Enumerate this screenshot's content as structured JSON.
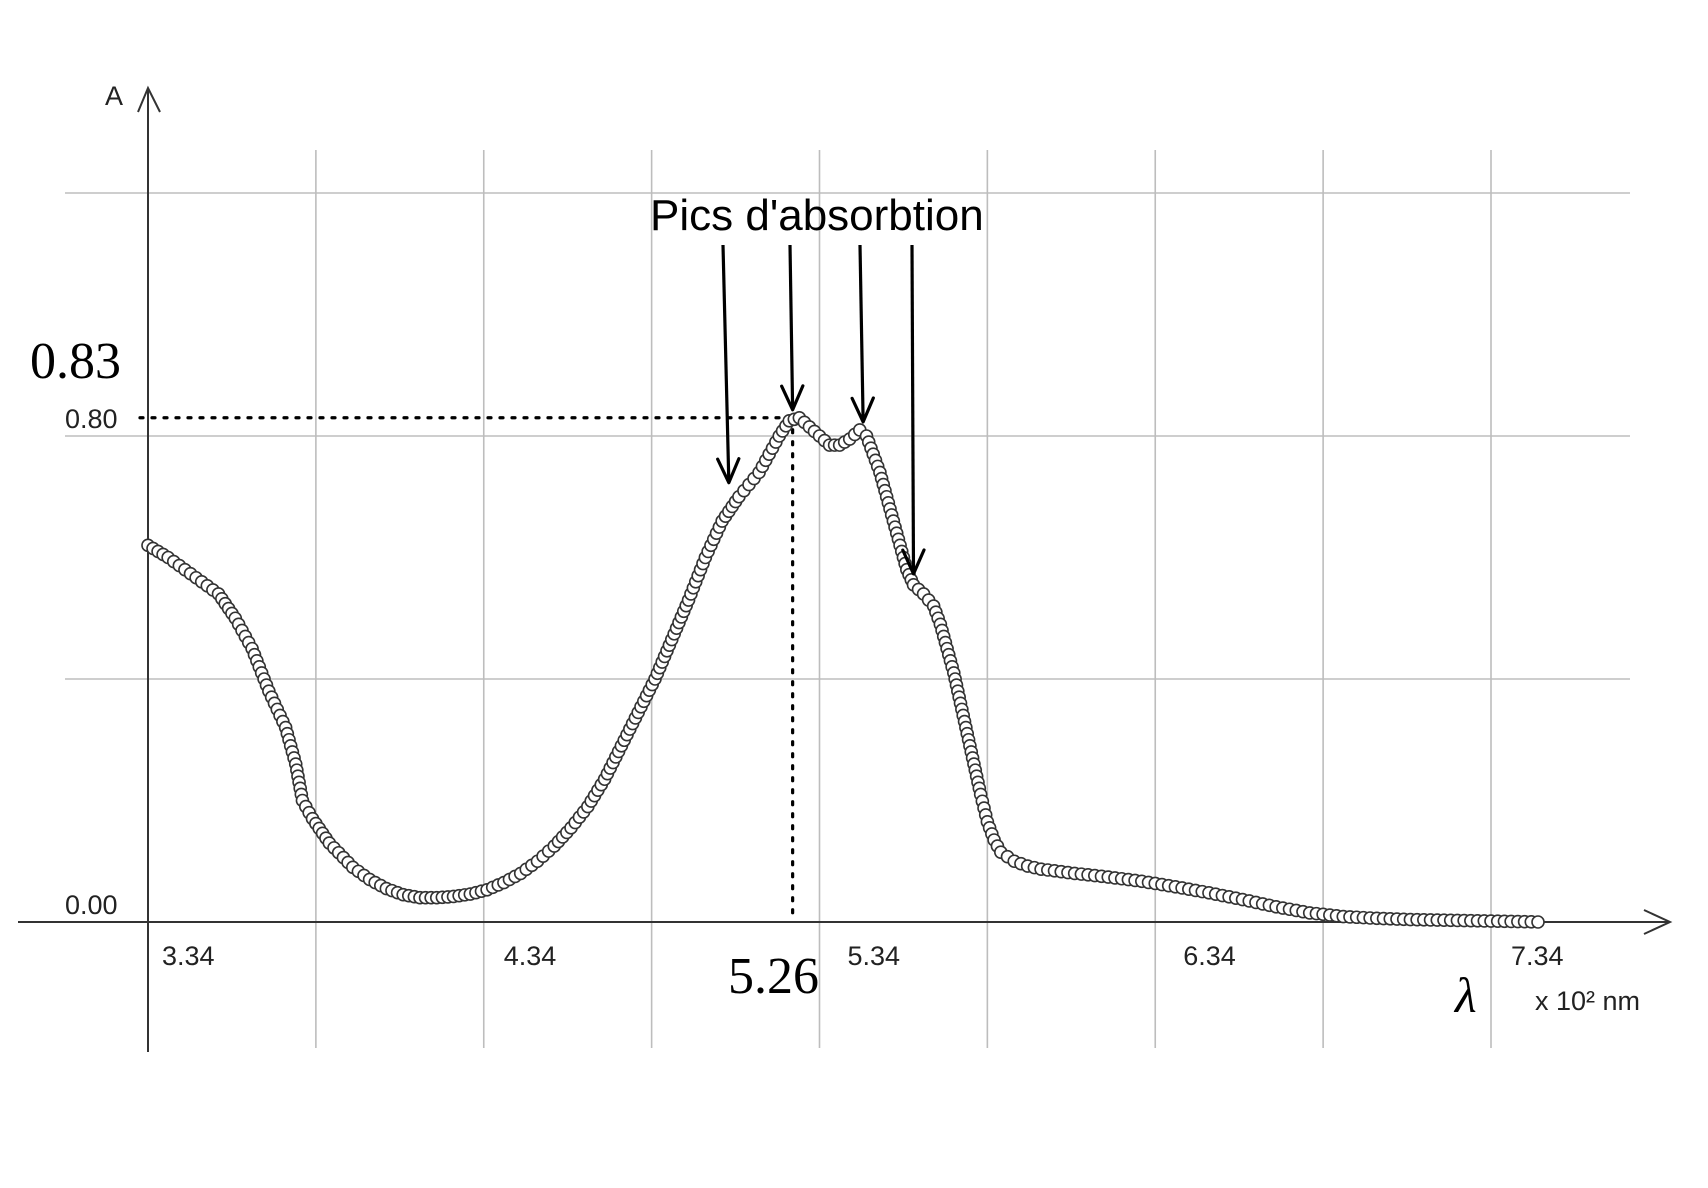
{
  "chart_data": {
    "type": "scatter",
    "title": "",
    "ylabel": "A",
    "xlabel": "λ",
    "xunit": "x 10² nm",
    "x_ticks": [
      "3.34",
      "4.34",
      "5.34",
      "6.34",
      "7.34"
    ],
    "y_ticks": [
      "0.00",
      "0.80"
    ],
    "xlim": [
      3.34,
      7.71
    ],
    "ylim": [
      0.0,
      0.96
    ],
    "grid": true,
    "marker": "open-circle",
    "reference": {
      "x_label": "5.26",
      "y_label": "0.83",
      "x": 5.26,
      "y": 0.83
    },
    "annotation": {
      "text": "Pics d'absorbtion",
      "targets": [
        {
          "x": 5.07,
          "y": 0.71
        },
        {
          "x": 5.26,
          "y": 0.83
        },
        {
          "x": 5.47,
          "y": 0.81
        },
        {
          "x": 5.62,
          "y": 0.56
        }
      ]
    },
    "series": [
      {
        "points": [
          [
            3.34,
            0.62
          ],
          [
            3.4,
            0.6
          ],
          [
            3.45,
            0.58
          ],
          [
            3.5,
            0.56
          ],
          [
            3.55,
            0.54
          ],
          [
            3.6,
            0.5
          ],
          [
            3.65,
            0.45
          ],
          [
            3.7,
            0.38
          ],
          [
            3.75,
            0.32
          ],
          [
            3.78,
            0.26
          ],
          [
            3.8,
            0.2
          ],
          [
            3.83,
            0.17
          ],
          [
            3.88,
            0.13
          ],
          [
            3.95,
            0.09
          ],
          [
            4.0,
            0.07
          ],
          [
            4.05,
            0.055
          ],
          [
            4.1,
            0.045
          ],
          [
            4.15,
            0.04
          ],
          [
            4.2,
            0.04
          ],
          [
            4.25,
            0.042
          ],
          [
            4.3,
            0.046
          ],
          [
            4.35,
            0.053
          ],
          [
            4.4,
            0.065
          ],
          [
            4.45,
            0.08
          ],
          [
            4.5,
            0.1
          ],
          [
            4.55,
            0.125
          ],
          [
            4.6,
            0.155
          ],
          [
            4.65,
            0.19
          ],
          [
            4.7,
            0.235
          ],
          [
            4.75,
            0.29
          ],
          [
            4.8,
            0.345
          ],
          [
            4.85,
            0.4
          ],
          [
            4.9,
            0.465
          ],
          [
            4.95,
            0.53
          ],
          [
            5.0,
            0.6
          ],
          [
            5.05,
            0.66
          ],
          [
            5.1,
            0.7
          ],
          [
            5.13,
            0.72
          ],
          [
            5.16,
            0.74
          ],
          [
            5.19,
            0.77
          ],
          [
            5.22,
            0.8
          ],
          [
            5.25,
            0.825
          ],
          [
            5.28,
            0.83
          ],
          [
            5.31,
            0.815
          ],
          [
            5.34,
            0.8
          ],
          [
            5.37,
            0.785
          ],
          [
            5.4,
            0.785
          ],
          [
            5.43,
            0.795
          ],
          [
            5.46,
            0.81
          ],
          [
            5.48,
            0.8
          ],
          [
            5.5,
            0.77
          ],
          [
            5.52,
            0.74
          ],
          [
            5.54,
            0.7
          ],
          [
            5.56,
            0.66
          ],
          [
            5.58,
            0.62
          ],
          [
            5.6,
            0.58
          ],
          [
            5.62,
            0.555
          ],
          [
            5.65,
            0.54
          ],
          [
            5.68,
            0.52
          ],
          [
            5.7,
            0.49
          ],
          [
            5.72,
            0.45
          ],
          [
            5.74,
            0.41
          ],
          [
            5.76,
            0.36
          ],
          [
            5.78,
            0.31
          ],
          [
            5.8,
            0.26
          ],
          [
            5.82,
            0.21
          ],
          [
            5.84,
            0.165
          ],
          [
            5.86,
            0.135
          ],
          [
            5.88,
            0.115
          ],
          [
            5.92,
            0.1
          ],
          [
            5.96,
            0.092
          ],
          [
            6.0,
            0.087
          ],
          [
            6.1,
            0.08
          ],
          [
            6.2,
            0.074
          ],
          [
            6.3,
            0.067
          ],
          [
            6.4,
            0.058
          ],
          [
            6.5,
            0.048
          ],
          [
            6.6,
            0.037
          ],
          [
            6.7,
            0.025
          ],
          [
            6.8,
            0.015
          ],
          [
            6.9,
            0.009
          ],
          [
            7.0,
            0.006
          ],
          [
            7.1,
            0.004
          ],
          [
            7.2,
            0.003
          ],
          [
            7.3,
            0.002
          ],
          [
            7.4,
            0.001
          ],
          [
            7.48,
            0.0
          ]
        ]
      }
    ]
  }
}
